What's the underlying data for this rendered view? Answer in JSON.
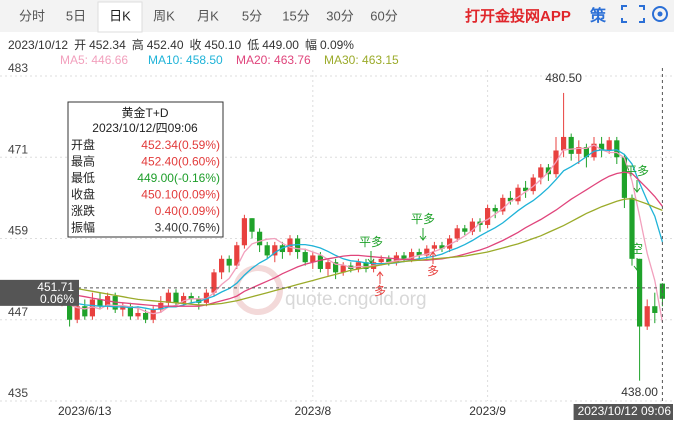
{
  "ui": {
    "tabs": [
      "分时",
      "5日",
      "日K",
      "周K",
      "月K",
      "5分",
      "15分",
      "30分",
      "60分"
    ],
    "selected_tab": 2,
    "brand": "打开金投网APP",
    "strategy": "策",
    "info": [
      "2023/10/12",
      "开",
      "452.34",
      "高",
      "452.40",
      "收",
      "450.10",
      "低",
      "449.00",
      "幅",
      "0.09%"
    ],
    "tooltip": {
      "title": "黄金T+D",
      "date": "2023/10/12/四09:06",
      "rows": [
        {
          "label": "开盘",
          "value": "452.34(0.59%)",
          "color": "#e23b3b"
        },
        {
          "label": "最高",
          "value": "452.40(0.60%)",
          "color": "#e23b3b"
        },
        {
          "label": "最低",
          "value": "449.00(-0.16%)",
          "color": "#1e9e2a"
        },
        {
          "label": "收盘",
          "value": "450.10(0.09%)",
          "color": "#e23b3b"
        },
        {
          "label": "涨跌",
          "value": "0.40(0.09%)",
          "color": "#e23b3b"
        },
        {
          "label": "振幅",
          "value": "3.40(0.76%)",
          "color": "#333333"
        }
      ]
    }
  },
  "chart_data": {
    "type": "candlestick",
    "categories": [
      "2023/6/13",
      null,
      null,
      null,
      null,
      null,
      null,
      null,
      null,
      null,
      null,
      null,
      null,
      null,
      null,
      null,
      null,
      null,
      null,
      null,
      null,
      null,
      null,
      null,
      null,
      null,
      null,
      null,
      null,
      null,
      null,
      null,
      null,
      "2023/8",
      null,
      null,
      null,
      null,
      null,
      null,
      null,
      null,
      null,
      null,
      null,
      null,
      null,
      null,
      null,
      null,
      null,
      null,
      null,
      null,
      null,
      null,
      "2023/9",
      null,
      null,
      null,
      null,
      null,
      null,
      null,
      null,
      null,
      null,
      null,
      null,
      null,
      null,
      null,
      null,
      null,
      null,
      null,
      null,
      null,
      null,
      "2023/10/12 09:06"
    ],
    "open": [
      450,
      451,
      447,
      449,
      447.5,
      450,
      449,
      450.5,
      448.5,
      449,
      447.5,
      448,
      447,
      448.5,
      449.5,
      451,
      449.5,
      450.5,
      450,
      449.5,
      451,
      454,
      456,
      455,
      458,
      462,
      460,
      458,
      456.5,
      458,
      457,
      459,
      457,
      455.5,
      456.5,
      454.5,
      455.5,
      454,
      455,
      454.5,
      455.5,
      454.5,
      455.5,
      456,
      455.5,
      456.5,
      456,
      457,
      456.5,
      457.5,
      458,
      457.5,
      459,
      460.5,
      460,
      461.5,
      461,
      463.5,
      463,
      465,
      464.5,
      466.5,
      466,
      468,
      469.5,
      468.5,
      472,
      474,
      471.5,
      472.5,
      471,
      473,
      472,
      473.5,
      471,
      465,
      456,
      446,
      449,
      452.34
    ],
    "high": [
      452,
      451.5,
      449.5,
      450,
      451,
      451,
      451,
      451,
      449.5,
      449.5,
      449,
      448.5,
      449,
      450.5,
      451.5,
      451.5,
      451,
      451,
      450.5,
      451.5,
      454.5,
      456.5,
      456.5,
      458.5,
      462.5,
      462,
      460.5,
      458.5,
      458.5,
      458.5,
      459.5,
      459.5,
      457.5,
      457,
      457,
      456,
      456,
      455.5,
      455.5,
      456,
      456,
      456,
      456.5,
      456.5,
      457,
      457,
      457.5,
      457.5,
      458,
      458.5,
      458.5,
      459.5,
      461,
      461,
      462,
      462,
      464,
      464,
      465.5,
      466,
      467,
      467.5,
      468.5,
      470,
      470,
      474,
      480.5,
      474.5,
      473.5,
      473,
      474,
      474,
      474,
      474,
      471.5,
      465.5,
      456,
      450,
      451,
      452.4
    ],
    "low": [
      449,
      446,
      446.5,
      447,
      447,
      448.5,
      448.5,
      448,
      447.5,
      447,
      447,
      446.5,
      446.5,
      448,
      449,
      449,
      449,
      449.5,
      448.5,
      449,
      450.5,
      453,
      454,
      454.5,
      457.5,
      459,
      457,
      456,
      455.5,
      456,
      456.5,
      456,
      455,
      454.5,
      454,
      453.5,
      453,
      453.5,
      454,
      454,
      454,
      454,
      455,
      455,
      455,
      455.5,
      455.5,
      456,
      456,
      457,
      457,
      457,
      458.5,
      459.5,
      459.5,
      460,
      460.5,
      462,
      462.5,
      464,
      464,
      465,
      465.5,
      467,
      467.5,
      468,
      471,
      470.5,
      470,
      469.5,
      470.5,
      471,
      471.5,
      470,
      463.5,
      455,
      438,
      445.5,
      446.5,
      449.0
    ],
    "close": [
      451,
      447,
      449,
      447.5,
      450,
      449,
      450.5,
      448.5,
      449,
      447.5,
      448,
      447,
      448.5,
      449.5,
      451,
      449.5,
      450.5,
      450,
      449.5,
      451,
      454,
      456,
      455,
      458,
      462,
      460,
      458,
      456.5,
      458,
      457,
      459,
      457,
      455.5,
      456.5,
      454.5,
      455.5,
      454,
      455,
      454.5,
      455.5,
      454.5,
      455.5,
      456,
      455.5,
      456.5,
      456,
      457,
      456.5,
      457.5,
      458,
      457.5,
      459,
      460.5,
      460,
      461.5,
      461,
      463.5,
      463,
      465,
      464.5,
      466.5,
      466,
      468,
      469.5,
      468.5,
      472,
      474,
      471.5,
      472.5,
      471,
      473,
      472,
      473.5,
      471,
      465,
      456,
      446,
      449,
      448,
      450.1
    ],
    "up_color": "#e8413f",
    "down_color": "#1fa22a",
    "series": [
      {
        "name": "MA5",
        "legend_label": "MA5: 446.66",
        "color": "#f2a0bd",
        "values": [
          449.5,
          449.2,
          448.8,
          448.6,
          448.9,
          448.6,
          449.2,
          449.1,
          449.1,
          448.9,
          448.7,
          448.2,
          447.9,
          448.1,
          448.9,
          449.1,
          449.8,
          450.1,
          450.1,
          450.1,
          451.0,
          452.2,
          453.1,
          454.8,
          457.0,
          458.2,
          458.6,
          458.9,
          459.0,
          458.3,
          457.7,
          457.5,
          457.4,
          457.0,
          456.6,
          455.9,
          455.2,
          455.1,
          454.7,
          454.9,
          454.8,
          455.0,
          455.2,
          455.5,
          455.7,
          455.9,
          456.2,
          456.5,
          456.7,
          457.1,
          457.5,
          458.1,
          458.7,
          459.4,
          460.2,
          461.3,
          461.8,
          462.6,
          463.4,
          464.5,
          465.1,
          465.9,
          466.7,
          467.7,
          468.8,
          470.3,
          472.1,
          472.2,
          472.3,
          472.3,
          472.8,
          472.1,
          471.7,
          471.7,
          470.9,
          467.5,
          462.3,
          456.8,
          452.8,
          446.66
        ]
      },
      {
        "name": "MA10",
        "legend_label": "MA10: 458.50",
        "color": "#1fb3d8",
        "values": [
          449.8,
          449.6,
          449.4,
          449.2,
          449.1,
          449.0,
          449.0,
          448.9,
          448.9,
          448.8,
          448.9,
          448.7,
          448.5,
          448.6,
          448.9,
          448.9,
          449.2,
          449.5,
          449.7,
          450.1,
          450.5,
          451.1,
          451.6,
          452.4,
          453.6,
          454.6,
          455.4,
          456.0,
          456.9,
          457.6,
          458.0,
          458.1,
          458.1,
          457.9,
          457.6,
          457.1,
          456.5,
          456.0,
          455.7,
          455.6,
          455.4,
          455.3,
          455.3,
          455.3,
          455.4,
          455.6,
          455.8,
          456.0,
          456.2,
          456.4,
          456.7,
          457.2,
          457.6,
          458.1,
          458.7,
          459.4,
          460.0,
          460.6,
          461.3,
          462.2,
          463.1,
          463.9,
          464.6,
          465.5,
          466.5,
          467.7,
          469.0,
          469.6,
          470.3,
          471.1,
          471.9,
          472.1,
          472.0,
          472.1,
          471.4,
          470.0,
          467.2,
          464.6,
          462.3,
          458.5
        ]
      },
      {
        "name": "MA20",
        "legend_label": "MA20: 463.76",
        "color": "#e0457c",
        "values": [
          451.0,
          450.8,
          450.6,
          450.4,
          450.2,
          450.0,
          449.8,
          449.6,
          449.5,
          449.4,
          449.3,
          449.2,
          449.1,
          449.0,
          449.0,
          449.0,
          449.0,
          449.0,
          449.0,
          449.2,
          449.5,
          449.8,
          450.1,
          450.5,
          451.2,
          451.7,
          452.2,
          452.7,
          453.2,
          453.8,
          454.3,
          454.8,
          455.2,
          455.5,
          455.8,
          456.0,
          456.2,
          456.4,
          456.5,
          456.5,
          456.4,
          456.3,
          456.2,
          456.1,
          456.0,
          455.9,
          455.9,
          455.8,
          455.8,
          455.9,
          456.0,
          456.2,
          456.4,
          456.7,
          457.0,
          457.3,
          457.7,
          458.2,
          458.7,
          459.3,
          459.9,
          460.6,
          461.2,
          461.8,
          462.5,
          463.2,
          464.0,
          464.8,
          465.5,
          466.2,
          466.9,
          467.6,
          468.2,
          468.6,
          468.8,
          468.6,
          467.5,
          466.4,
          465.2,
          463.76
        ]
      },
      {
        "name": "MA30",
        "legend_label": "MA30: 463.15",
        "color": "#9bab2a",
        "values": [
          452.0,
          451.8,
          451.6,
          451.4,
          451.2,
          451.0,
          450.8,
          450.6,
          450.4,
          450.2,
          450.0,
          449.9,
          449.8,
          449.7,
          449.6,
          449.5,
          449.4,
          449.3,
          449.2,
          449.2,
          449.3,
          449.4,
          449.6,
          449.8,
          450.1,
          450.4,
          450.7,
          451.0,
          451.3,
          451.6,
          451.9,
          452.2,
          452.5,
          452.8,
          453.1,
          453.4,
          453.7,
          454.0,
          454.3,
          454.5,
          454.7,
          454.9,
          455.1,
          455.3,
          455.5,
          455.6,
          455.7,
          455.8,
          455.9,
          456.0,
          456.1,
          456.2,
          456.3,
          456.4,
          456.6,
          456.8,
          457.0,
          457.3,
          457.6,
          457.9,
          458.2,
          458.6,
          459.0,
          459.4,
          459.9,
          460.4,
          460.9,
          461.5,
          462.1,
          462.7,
          463.2,
          463.7,
          464.1,
          464.5,
          464.8,
          464.9,
          464.5,
          464.1,
          463.6,
          463.15
        ]
      }
    ],
    "ylim": [
      435,
      483
    ],
    "yticks": [
      435,
      447,
      459,
      471,
      483
    ],
    "grid": true,
    "max_label": {
      "value": 480.5,
      "label": "480.50"
    },
    "min_label": {
      "value": 438,
      "label": "438.00"
    },
    "cursor": {
      "price": 451.71,
      "change": "0.06%"
    },
    "annotations": [
      {
        "text": "平多",
        "color": "#1fa22a"
      },
      {
        "text": "多",
        "color": "#e8413f"
      },
      {
        "text": "平多",
        "color": "#1fa22a"
      },
      {
        "text": "多",
        "color": "#e8413f"
      },
      {
        "text": "平多",
        "color": "#1fa22a"
      },
      {
        "text": "空",
        "color": "#1fa22a"
      }
    ],
    "watermark": "quote.cngold.org"
  }
}
